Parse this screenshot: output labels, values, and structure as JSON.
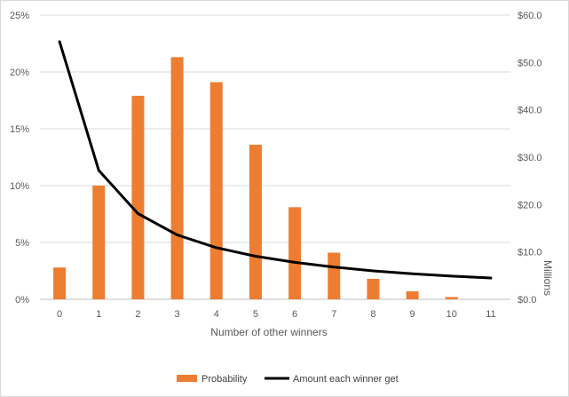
{
  "chart_data": {
    "type": "bar",
    "categories": [
      "0",
      "1",
      "2",
      "3",
      "4",
      "5",
      "6",
      "7",
      "8",
      "9",
      "10",
      "11"
    ],
    "xlabel": "Number of other winners",
    "ylabel_right": "Millions",
    "left_axis": {
      "ylim": [
        0,
        0.25
      ],
      "ticks": [
        {
          "value": 0,
          "label": "0%"
        },
        {
          "value": 0.05,
          "label": "5%"
        },
        {
          "value": 0.1,
          "label": "10%"
        },
        {
          "value": 0.15,
          "label": "15%"
        },
        {
          "value": 0.2,
          "label": "20%"
        },
        {
          "value": 0.25,
          "label": "25%"
        }
      ]
    },
    "right_axis": {
      "ylim": [
        0,
        60
      ],
      "ticks": [
        {
          "value": 0,
          "label": "$0.0"
        },
        {
          "value": 10,
          "label": "$10.0"
        },
        {
          "value": 20,
          "label": "$20.0"
        },
        {
          "value": 30,
          "label": "$30.0"
        },
        {
          "value": 40,
          "label": "$40.0"
        },
        {
          "value": 50,
          "label": "$50.0"
        },
        {
          "value": 60,
          "label": "$60.0"
        }
      ]
    },
    "grid": true,
    "legend_position": "bottom",
    "series": [
      {
        "name": "Probability",
        "type": "bar",
        "axis": "left",
        "color": "#ed7d31",
        "values": [
          0.028,
          0.1,
          0.179,
          0.213,
          0.191,
          0.136,
          0.081,
          0.041,
          0.018,
          0.007,
          0.002,
          null
        ]
      },
      {
        "name": "Amount each winner get",
        "type": "line",
        "axis": "right",
        "color": "#000000",
        "values": [
          54.4,
          27.2,
          18.1,
          13.6,
          10.9,
          9.1,
          7.8,
          6.8,
          6.0,
          5.4,
          4.9,
          4.5
        ]
      }
    ]
  }
}
